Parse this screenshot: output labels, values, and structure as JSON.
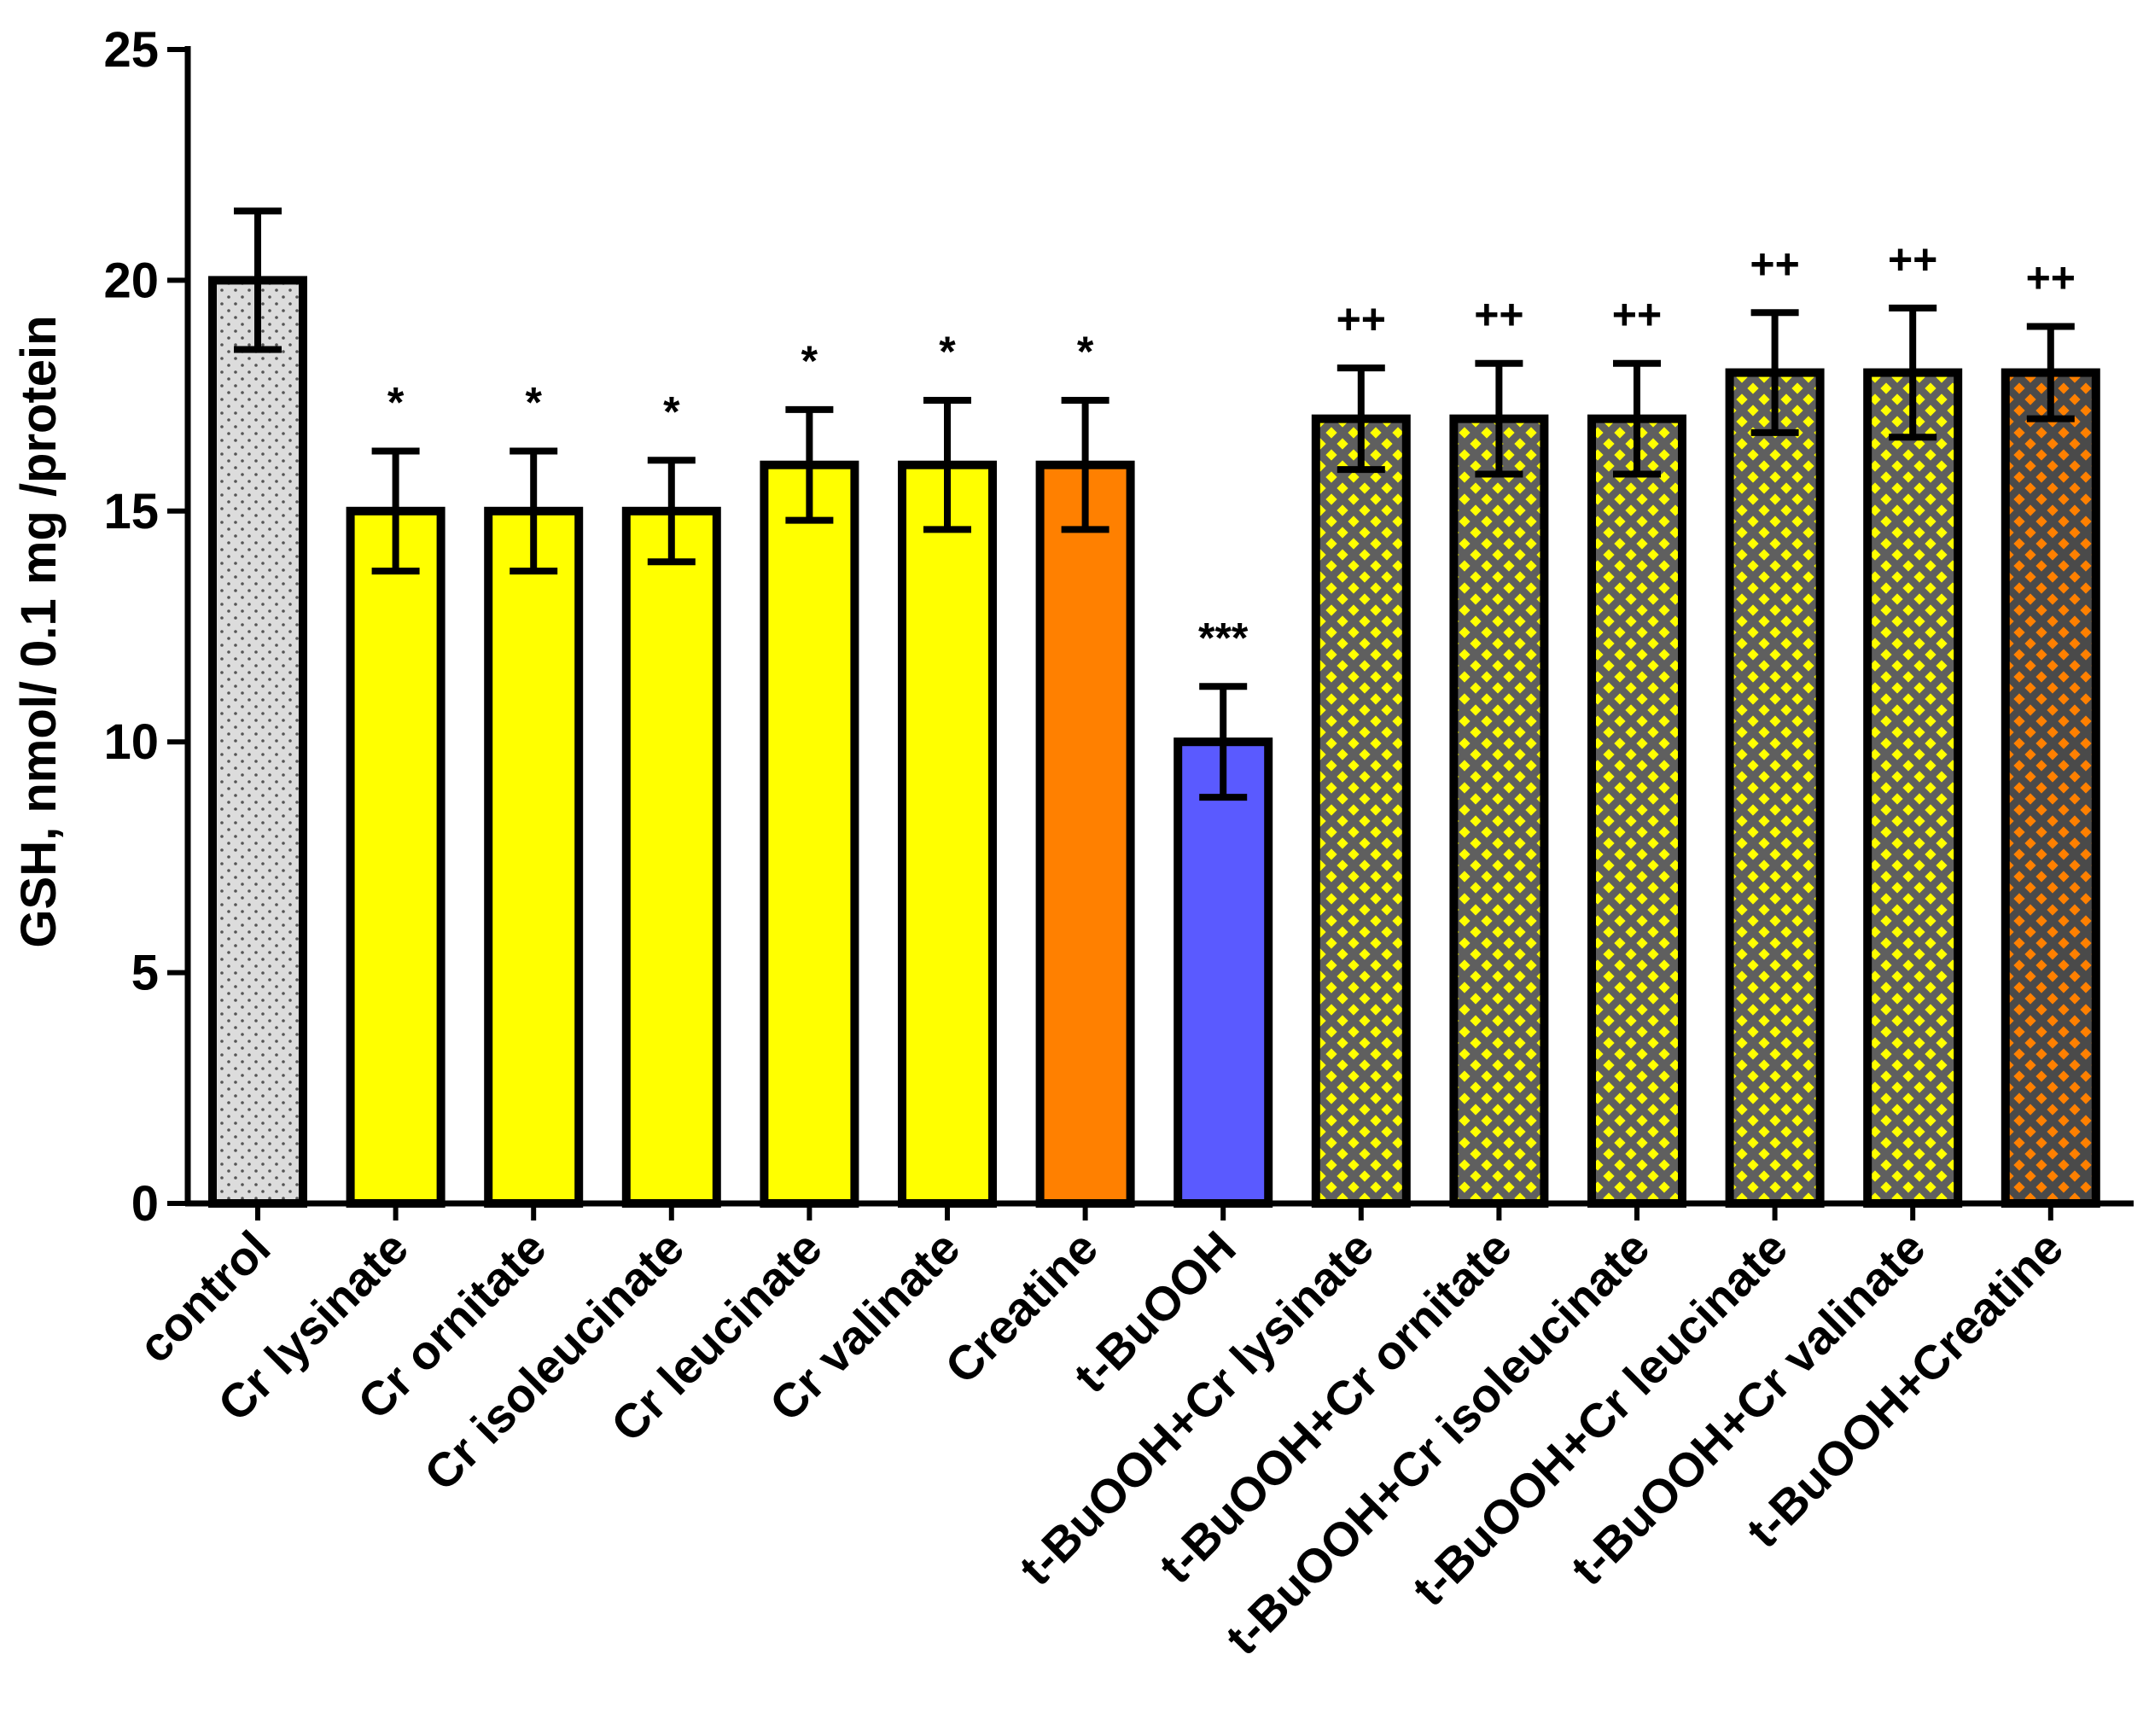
{
  "chart_data": {
    "type": "bar",
    "title": "",
    "xlabel": "",
    "ylabel": "GSH, nmol/ 0.1 mg /protein",
    "ylim": [
      0,
      25
    ],
    "yticks": [
      0,
      5,
      10,
      15,
      20,
      25
    ],
    "grid": false,
    "legend": "none",
    "categories": [
      "control",
      "Cr lysinate",
      "Cr ornitate",
      "Cr isoleucinate",
      "Cr leucinate",
      "Cr valinate",
      "Creatine",
      "t-BuOOH",
      "t-BuOOH+Cr lysinate",
      "t-BuOOH+Cr ornitate",
      "t-BuOOH+Cr isoleucinate",
      "t-BuOOH+Cr leucinate",
      "t-BuOOH+Cr valinate",
      "t-BuOOH+Creatine"
    ],
    "values": [
      20.0,
      15.0,
      15.0,
      15.0,
      16.0,
      16.0,
      16.0,
      10.0,
      17.0,
      17.0,
      17.0,
      18.0,
      18.0,
      18.0
    ],
    "errors": [
      1.5,
      1.3,
      1.3,
      1.1,
      1.2,
      1.4,
      1.4,
      1.2,
      1.1,
      1.2,
      1.2,
      1.3,
      1.4,
      1.0
    ],
    "significance": [
      "",
      "*",
      "*",
      "*",
      "*",
      "*",
      "*",
      "***",
      "++",
      "++",
      "++",
      "++",
      "++",
      "++"
    ],
    "fills": [
      {
        "base": "#dcdcdc",
        "pattern": "dots",
        "pattern_color": "#555555"
      },
      {
        "base": "#ffff00",
        "pattern": "none",
        "pattern_color": ""
      },
      {
        "base": "#ffff00",
        "pattern": "none",
        "pattern_color": ""
      },
      {
        "base": "#ffff00",
        "pattern": "none",
        "pattern_color": ""
      },
      {
        "base": "#ffff00",
        "pattern": "none",
        "pattern_color": ""
      },
      {
        "base": "#ffff00",
        "pattern": "none",
        "pattern_color": ""
      },
      {
        "base": "#ff8000",
        "pattern": "none",
        "pattern_color": ""
      },
      {
        "base": "#5a5aff",
        "pattern": "none",
        "pattern_color": ""
      },
      {
        "base": "#ffff00",
        "pattern": "crosshatch",
        "pattern_color": "#5f5f5f"
      },
      {
        "base": "#ffff00",
        "pattern": "crosshatch",
        "pattern_color": "#5f5f5f"
      },
      {
        "base": "#ffff00",
        "pattern": "crosshatch",
        "pattern_color": "#5f5f5f"
      },
      {
        "base": "#ffff00",
        "pattern": "crosshatch",
        "pattern_color": "#5f5f5f"
      },
      {
        "base": "#ffff00",
        "pattern": "crosshatch",
        "pattern_color": "#5f5f5f"
      },
      {
        "base": "#ff8000",
        "pattern": "crosshatch",
        "pattern_color": "#4a4a4a"
      }
    ]
  }
}
